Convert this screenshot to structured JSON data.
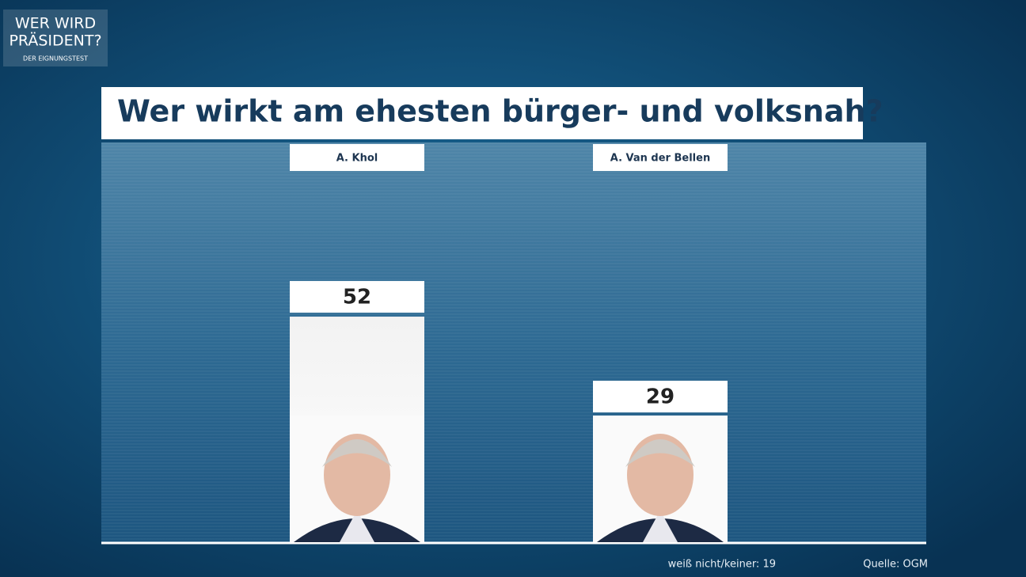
{
  "logo": {
    "line1": "WER WIRD",
    "line2": "PRÄSIDENT?",
    "line3": "DER EIGNUNGSTEST"
  },
  "chart_data": {
    "type": "bar",
    "title": "Wer wirkt am ehesten bürger- und volksnah?",
    "categories": [
      "A. Khol",
      "A. Van der Bellen"
    ],
    "values": [
      52,
      29
    ],
    "color": "#ffffff",
    "note": "weiß nicht/keiner: 19",
    "source": "Quelle: OGM"
  }
}
